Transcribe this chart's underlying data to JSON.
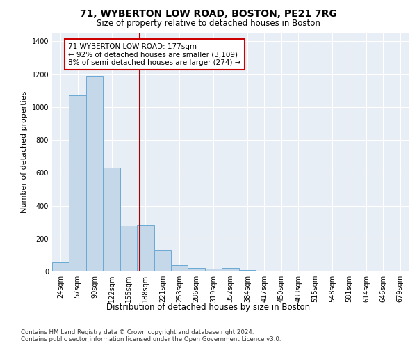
{
  "title_line1": "71, WYBERTON LOW ROAD, BOSTON, PE21 7RG",
  "title_line2": "Size of property relative to detached houses in Boston",
  "xlabel": "Distribution of detached houses by size in Boston",
  "ylabel": "Number of detached properties",
  "bar_labels": [
    "24sqm",
    "57sqm",
    "90sqm",
    "122sqm",
    "155sqm",
    "188sqm",
    "221sqm",
    "253sqm",
    "286sqm",
    "319sqm",
    "352sqm",
    "384sqm",
    "417sqm",
    "450sqm",
    "483sqm",
    "515sqm",
    "548sqm",
    "581sqm",
    "614sqm",
    "646sqm",
    "679sqm"
  ],
  "bar_heights": [
    55,
    1070,
    1190,
    630,
    280,
    285,
    130,
    40,
    20,
    15,
    20,
    10,
    0,
    0,
    0,
    0,
    0,
    0,
    0,
    0,
    0
  ],
  "bar_color": "#c5d8ea",
  "bar_edge_color": "#6aaad4",
  "annotation_text": "71 WYBERTON LOW ROAD: 177sqm\n← 92% of detached houses are smaller (3,109)\n8% of semi-detached houses are larger (274) →",
  "annotation_box_color": "#ffffff",
  "annotation_box_edge": "#cc0000",
  "vline_color": "#aa0000",
  "ylim": [
    0,
    1450
  ],
  "yticks": [
    0,
    200,
    400,
    600,
    800,
    1000,
    1200,
    1400
  ],
  "footer_text": "Contains HM Land Registry data © Crown copyright and database right 2024.\nContains public sector information licensed under the Open Government Licence v3.0.",
  "bg_color": "#ffffff",
  "plot_bg_color": "#e8eef5"
}
